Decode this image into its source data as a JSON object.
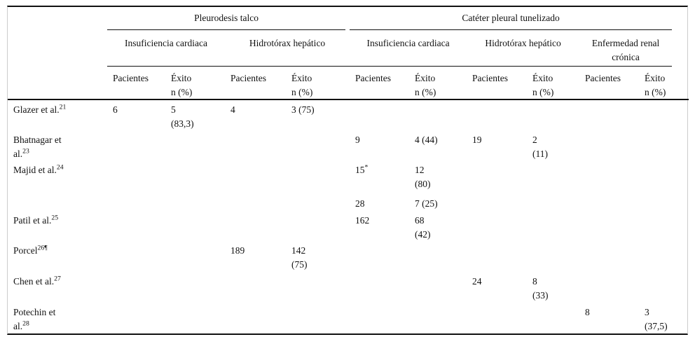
{
  "table": {
    "groups": [
      {
        "label": "Pleurodesis talco",
        "span": 4
      },
      {
        "label": "Catéter pleural tunelizado",
        "span": 6
      }
    ],
    "subgroups": [
      {
        "label": "Insuficiencia cardiaca"
      },
      {
        "label": "Hidrotórax hepático"
      },
      {
        "label": "Insuficiencia cardiaca"
      },
      {
        "label": "Hidrotórax hepático"
      },
      {
        "label": "Enfermedad renal\ncrónica"
      }
    ],
    "col_headers": {
      "patients": "Pacientes",
      "success": "Éxito\nn (%)"
    },
    "rows": [
      {
        "study": "Glazer et al.^21",
        "values": [
          "6",
          "5\n(83,3)",
          "4",
          "3 (75)",
          "",
          "",
          "",
          "",
          "",
          ""
        ]
      },
      {
        "study": "Bhatnagar et\nal.^23",
        "values": [
          "",
          "",
          "",
          "",
          "9",
          "4 (44)",
          "19",
          "2\n(11)",
          "",
          ""
        ]
      },
      {
        "study": "Majid et al.^24",
        "values": [
          "",
          "",
          "",
          "",
          "15^*",
          "12\n(80)",
          "",
          "",
          "",
          ""
        ]
      },
      {
        "study": "",
        "values": [
          "",
          "",
          "",
          "",
          "28",
          "7 (25)",
          "",
          "",
          "",
          ""
        ]
      },
      {
        "study": "Patil et al.^25",
        "values": [
          "",
          "",
          "",
          "",
          "162",
          "68\n(42)",
          "",
          "",
          "",
          ""
        ]
      },
      {
        "study": "Porcel^26¶",
        "values": [
          "",
          "",
          "189",
          "142\n(75)",
          "",
          "",
          "",
          "",
          "",
          ""
        ]
      },
      {
        "study": "Chen et al.^27",
        "values": [
          "",
          "",
          "",
          "",
          "",
          "",
          "24",
          "8\n(33)",
          "",
          ""
        ]
      },
      {
        "study": "Potechin et\nal.^28",
        "values": [
          "",
          "",
          "",
          "",
          "",
          "",
          "",
          "",
          "8",
          "3\n(37,5)"
        ]
      }
    ]
  },
  "colors": {
    "rule": "#111111",
    "frame": "#cccccc",
    "text": "#111111",
    "background": "#ffffff"
  }
}
